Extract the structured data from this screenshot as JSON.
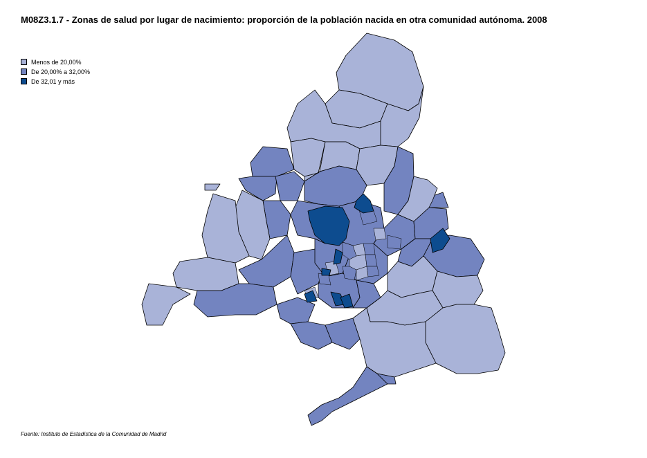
{
  "title": "M08Z3.1.7 - Zonas de salud por lugar de nacimiento: proporción de la población nacida en otra comunidad autónoma. 2008",
  "legend": [
    {
      "label": "Menos de 20,00%",
      "color": "#a9b3d8"
    },
    {
      "label": "De 20,00% a 32,00%",
      "color": "#7384c0"
    },
    {
      "label": "De 32,01 y más",
      "color": "#0d4c8f"
    }
  ],
  "source": "Fuente: Instituto de Estadística de la Comunidad de Madrid",
  "colors": {
    "low": "#a9b3d8",
    "mid": "#7384c0",
    "high": "#0d4c8f",
    "border": "#000000",
    "background": "#ffffff"
  }
}
